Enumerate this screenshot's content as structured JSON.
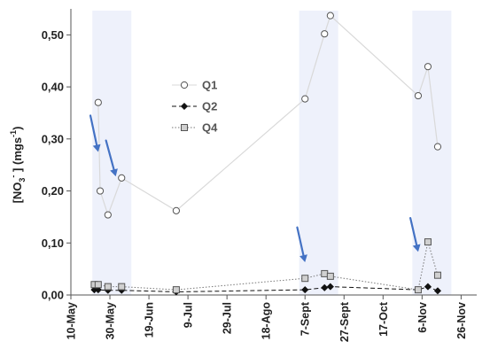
{
  "chart_data": {
    "type": "line",
    "title": "",
    "xlabel": "",
    "ylabel": {
      "prefix": "[NO",
      "sub": "3",
      "sup": "-",
      "mid": "] (mgs",
      "sup2": "-1",
      "end": ")"
    },
    "ylim": [
      0,
      0.55
    ],
    "xlim": [
      "2014-05-10",
      "2014-12-04"
    ],
    "y_ticks": [
      {
        "value": 0.0,
        "label": "0,00"
      },
      {
        "value": 0.1,
        "label": "0,10"
      },
      {
        "value": 0.2,
        "label": "0,20"
      },
      {
        "value": 0.3,
        "label": "0,30"
      },
      {
        "value": 0.4,
        "label": "0,40"
      },
      {
        "value": 0.5,
        "label": "0,50"
      }
    ],
    "x_ticks": [
      {
        "date": "2014-05-10",
        "label": "10-May"
      },
      {
        "date": "2014-05-30",
        "label": "30-May"
      },
      {
        "date": "2014-06-19",
        "label": "19-Jun"
      },
      {
        "date": "2014-07-09",
        "label": "9-Jul"
      },
      {
        "date": "2014-07-29",
        "label": "29-Jul"
      },
      {
        "date": "2014-08-18",
        "label": "18-Ago"
      },
      {
        "date": "2014-09-07",
        "label": "7-Sept"
      },
      {
        "date": "2014-09-27",
        "label": "27-Sept"
      },
      {
        "date": "2014-10-17",
        "label": "17-Oct"
      },
      {
        "date": "2014-11-06",
        "label": "6-Nov"
      },
      {
        "date": "2014-11-26",
        "label": "26-Nov"
      }
    ],
    "grid": false,
    "legend": "upper-center",
    "shaded_periods": [
      {
        "start": "2014-05-21",
        "end": "2014-06-10"
      },
      {
        "start": "2014-09-04",
        "end": "2014-09-24"
      },
      {
        "start": "2014-11-01",
        "end": "2014-11-21"
      }
    ],
    "series": [
      {
        "name": "Q1",
        "marker": "circle",
        "line": "solid",
        "color": "#d9d9d9",
        "marker_fill": "#ffffff",
        "marker_stroke": "#555555",
        "points": [
          {
            "x": "2014-05-24",
            "y": 0.37
          },
          {
            "x": "2014-05-25",
            "y": 0.2
          },
          {
            "x": "2014-05-29",
            "y": 0.154
          },
          {
            "x": "2014-06-05",
            "y": 0.225
          },
          {
            "x": "2014-07-03",
            "y": 0.162
          },
          {
            "x": "2014-09-07",
            "y": 0.377
          },
          {
            "x": "2014-09-17",
            "y": 0.502
          },
          {
            "x": "2014-09-20",
            "y": 0.537
          },
          {
            "x": "2014-11-04",
            "y": 0.383
          },
          {
            "x": "2014-11-09",
            "y": 0.439
          },
          {
            "x": "2014-11-14",
            "y": 0.285
          }
        ]
      },
      {
        "name": "Q2",
        "marker": "diamond",
        "line": "dashed",
        "color": "#111111",
        "marker_fill": "#111111",
        "marker_stroke": "#111111",
        "points": [
          {
            "x": "2014-05-22",
            "y": 0.01
          },
          {
            "x": "2014-05-24",
            "y": 0.01
          },
          {
            "x": "2014-05-29",
            "y": 0.009
          },
          {
            "x": "2014-06-05",
            "y": 0.009
          },
          {
            "x": "2014-07-03",
            "y": 0.006
          },
          {
            "x": "2014-09-07",
            "y": 0.01
          },
          {
            "x": "2014-09-17",
            "y": 0.014
          },
          {
            "x": "2014-09-20",
            "y": 0.016
          },
          {
            "x": "2014-11-04",
            "y": 0.01
          },
          {
            "x": "2014-11-09",
            "y": 0.016
          },
          {
            "x": "2014-11-14",
            "y": 0.008
          }
        ]
      },
      {
        "name": "Q4",
        "marker": "square",
        "line": "dotted",
        "color": "#777777",
        "marker_fill": "#d0d0d0",
        "marker_stroke": "#555555",
        "points": [
          {
            "x": "2014-05-22",
            "y": 0.02
          },
          {
            "x": "2014-05-24",
            "y": 0.02
          },
          {
            "x": "2014-05-29",
            "y": 0.016
          },
          {
            "x": "2014-06-05",
            "y": 0.016
          },
          {
            "x": "2014-07-03",
            "y": 0.01
          },
          {
            "x": "2014-09-07",
            "y": 0.032
          },
          {
            "x": "2014-09-17",
            "y": 0.041
          },
          {
            "x": "2014-09-20",
            "y": 0.036
          },
          {
            "x": "2014-11-04",
            "y": 0.01
          },
          {
            "x": "2014-11-09",
            "y": 0.102
          },
          {
            "x": "2014-11-14",
            "y": 0.038
          }
        ]
      }
    ],
    "annotations": [
      {
        "type": "arrow",
        "color": "#4472c4",
        "from": {
          "x": "2014-05-20",
          "y": 0.345
        },
        "to": {
          "x": "2014-05-24",
          "y": 0.275
        }
      },
      {
        "type": "arrow",
        "color": "#4472c4",
        "from": {
          "x": "2014-05-28",
          "y": 0.297
        },
        "to": {
          "x": "2014-06-02",
          "y": 0.228
        }
      },
      {
        "type": "arrow",
        "color": "#4472c4",
        "from": {
          "x": "2014-09-03",
          "y": 0.13
        },
        "to": {
          "x": "2014-09-07",
          "y": 0.063
        }
      },
      {
        "type": "arrow",
        "color": "#4472c4",
        "from": {
          "x": "2014-10-31",
          "y": 0.148
        },
        "to": {
          "x": "2014-11-04",
          "y": 0.083
        }
      }
    ]
  }
}
